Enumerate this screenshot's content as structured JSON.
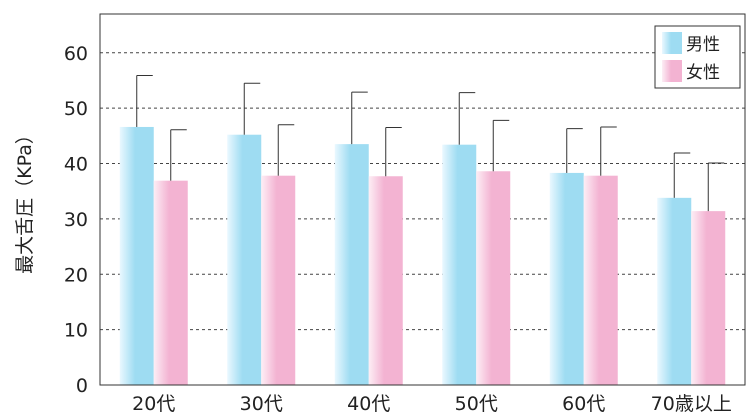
{
  "chart_data": {
    "type": "bar",
    "categories": [
      "20代",
      "30代",
      "40代",
      "50代",
      "60代",
      "70歳以上"
    ],
    "series": [
      {
        "name": "男性",
        "values": [
          46.6,
          45.2,
          43.5,
          43.4,
          38.3,
          33.8
        ],
        "error": [
          9.3,
          9.3,
          9.4,
          9.4,
          8.0,
          8.1
        ],
        "color_light": "#eaf8ff",
        "color_dark": "#9edcf2"
      },
      {
        "name": "女性",
        "values": [
          36.9,
          37.8,
          37.7,
          38.6,
          37.8,
          31.4
        ],
        "error": [
          9.2,
          9.2,
          8.8,
          9.2,
          8.8,
          8.7
        ],
        "color_light": "#fdeef5",
        "color_dark": "#f3b3d2"
      }
    ],
    "ylabel": "最大舌圧（KPa）",
    "ylim": [
      0,
      67
    ],
    "yticks": [
      0,
      10,
      20,
      30,
      40,
      50,
      60
    ],
    "grid": true,
    "grid_style": "dashed",
    "legend_position": "top-right"
  }
}
